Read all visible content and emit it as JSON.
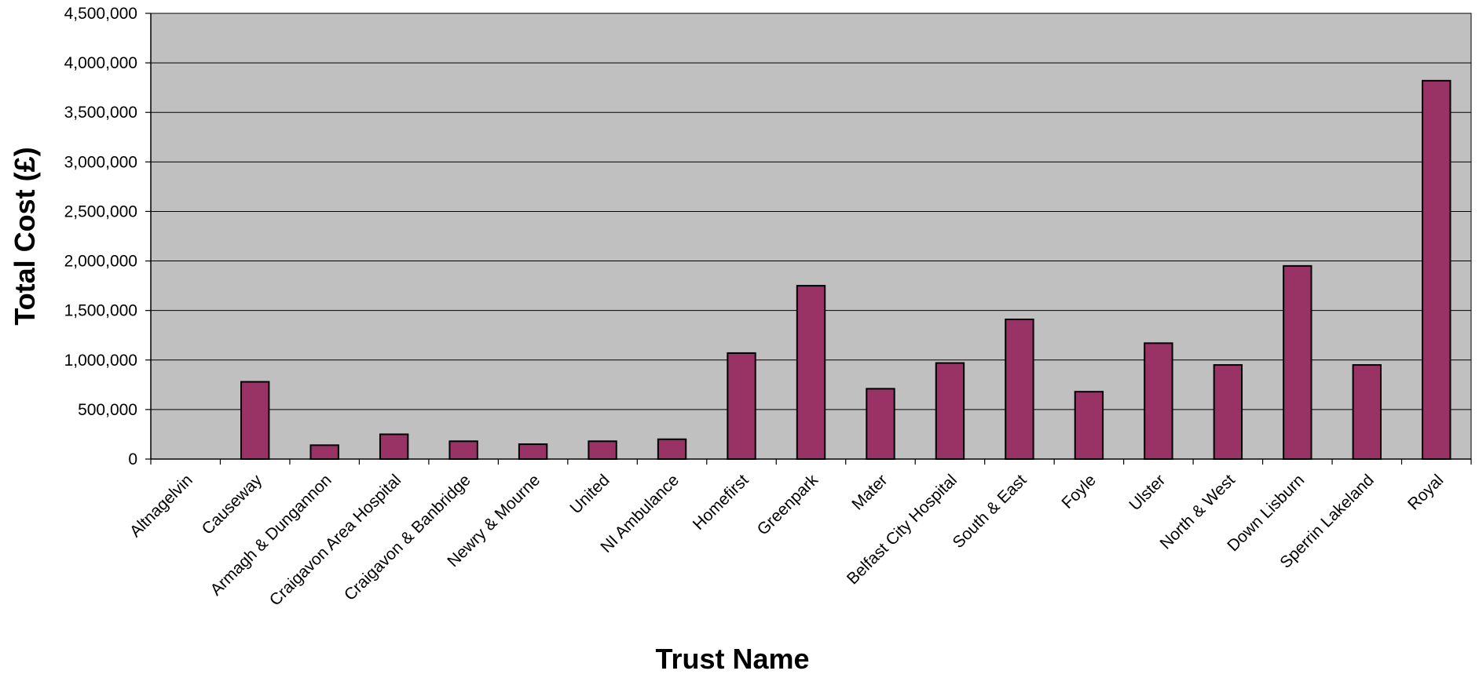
{
  "chart_data": {
    "type": "bar",
    "title": "",
    "xlabel": "Trust Name",
    "ylabel": "Total Cost (£)",
    "ylim": [
      0,
      4500000
    ],
    "yticks": [
      {
        "value": 0,
        "label": "0"
      },
      {
        "value": 500000,
        "label": "500,000"
      },
      {
        "value": 1000000,
        "label": "1,000,000"
      },
      {
        "value": 1500000,
        "label": "1,500,000"
      },
      {
        "value": 2000000,
        "label": "2,000,000"
      },
      {
        "value": 2500000,
        "label": "2,500,000"
      },
      {
        "value": 3000000,
        "label": "3,000,000"
      },
      {
        "value": 3500000,
        "label": "3,500,000"
      },
      {
        "value": 4000000,
        "label": "4,000,000"
      },
      {
        "value": 4500000,
        "label": "4,500,000"
      }
    ],
    "grid": true,
    "legend": "none",
    "categories": [
      "Altnagelvin",
      "Causeway",
      "Armagh & Dungannon",
      "Craigavon Area Hospital",
      "Craigavon & Banbridge",
      "Newry & Mourne",
      "United",
      "NI Ambulance",
      "Homefirst",
      "Greenpark",
      "Mater",
      "Belfast City Hospital",
      "South & East",
      "Foyle",
      "Ulster",
      "North & West",
      "Down Lisburn",
      "Sperrin Lakeland",
      "Royal"
    ],
    "series": [
      {
        "values": [
          0,
          780000,
          140000,
          250000,
          180000,
          150000,
          180000,
          200000,
          1070000,
          1750000,
          710000,
          970000,
          1410000,
          680000,
          1170000,
          950000,
          1950000,
          950000,
          3820000
        ]
      }
    ],
    "colors": {
      "bar": "#993366",
      "plot_bg": "#c0c0c0",
      "gridline": "#000000",
      "border": "#000000"
    }
  }
}
